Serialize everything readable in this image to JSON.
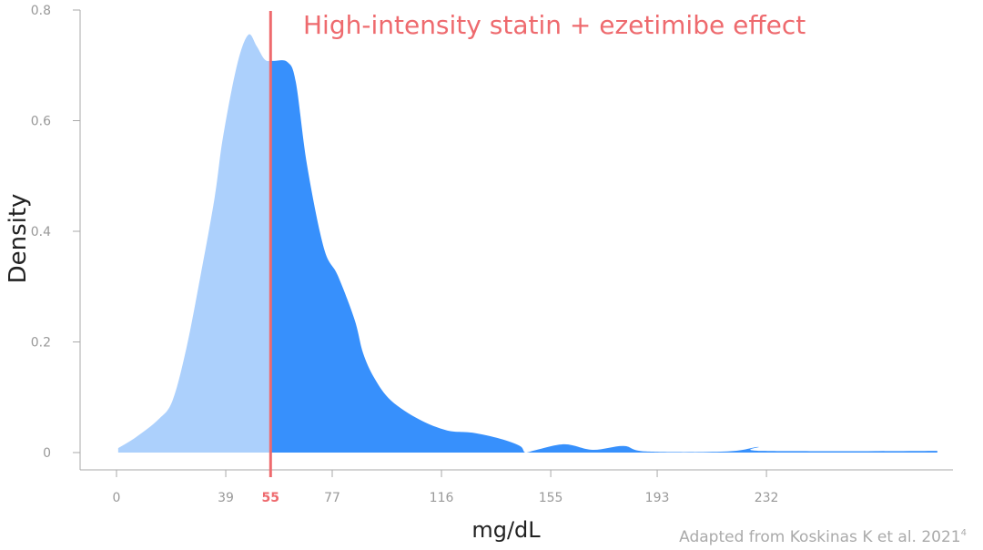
{
  "chart_data": {
    "type": "area",
    "title": "High-intensity statin + ezetimibe effect",
    "xlabel": "mg/dL",
    "ylabel": "Density",
    "source": "Adapted from Koskinas K et al. 2021",
    "source_superscript": "4",
    "xlim": [
      0,
      295
    ],
    "ylim": [
      0,
      0.8
    ],
    "x_ticks": [
      0,
      39,
      55,
      77,
      116,
      155,
      193,
      232
    ],
    "x_tick_labels": [
      "0",
      "39",
      "55",
      "77",
      "116",
      "155",
      "193",
      "232"
    ],
    "y_ticks": [
      0,
      0.2,
      0.4,
      0.6,
      0.8
    ],
    "y_tick_labels": [
      "0",
      "0.2",
      "0.4",
      "0.6",
      "0.8"
    ],
    "threshold": 55,
    "threshold_label": "55",
    "grid": false,
    "colors": {
      "below_threshold": "#acd0fc",
      "above_threshold": "#3790fc",
      "threshold": "#ee6a6e",
      "axis": "#999999"
    },
    "x": [
      0.6,
      7,
      15,
      20,
      25,
      30,
      35,
      38,
      43,
      47,
      50,
      53,
      56,
      61,
      64,
      68,
      74,
      79,
      85,
      88,
      92,
      98,
      108,
      118,
      127,
      137,
      144,
      146,
      150,
      160,
      170,
      181,
      189,
      218,
      229,
      231,
      293
    ],
    "y": [
      0.008,
      0.028,
      0.06,
      0.094,
      0.19,
      0.32,
      0.46,
      0.57,
      0.7,
      0.755,
      0.735,
      0.71,
      0.708,
      0.706,
      0.67,
      0.52,
      0.37,
      0.32,
      0.24,
      0.18,
      0.135,
      0.094,
      0.06,
      0.04,
      0.036,
      0.025,
      0.012,
      0,
      0.005,
      0.015,
      0.005,
      0.012,
      0.002,
      0.002,
      0.01,
      0.003,
      0.003
    ]
  }
}
